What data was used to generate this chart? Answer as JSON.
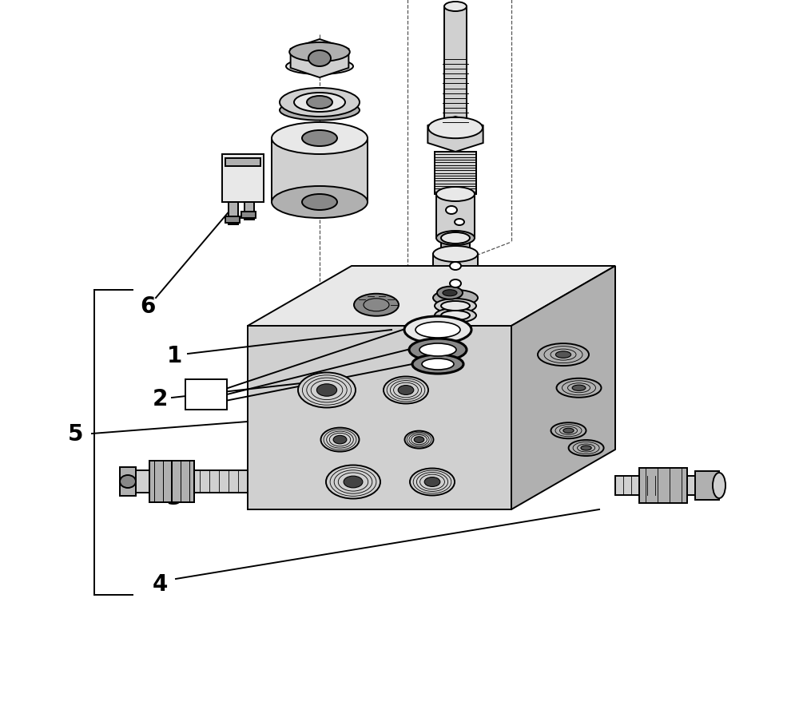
{
  "bg_color": "#ffffff",
  "line_color": "#000000",
  "fig_width": 10.0,
  "fig_height": 9.04,
  "label_fontsize": 20,
  "lw": 1.4,
  "gray_light": "#e8e8e8",
  "gray_mid": "#d0d0d0",
  "gray_dark": "#b0b0b0",
  "gray_darker": "#888888"
}
